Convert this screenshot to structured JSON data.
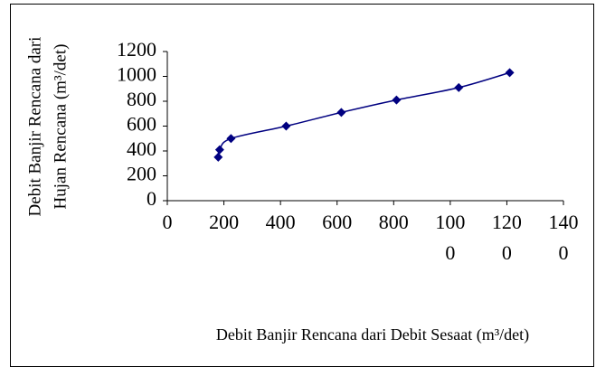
{
  "chart_data": {
    "type": "scatter",
    "x_label": "Debit Banjir Rencana dari Debit Sesaat (m³/det)",
    "y_label": [
      "Debit Banjir Rencana dari",
      "Hujan Rencana (m³/det)"
    ],
    "series": [
      {
        "color": "#000080",
        "x": [
          180,
          185,
          225,
          420,
          615,
          810,
          1030,
          1210
        ],
        "values": [
          350,
          410,
          500,
          600,
          710,
          810,
          910,
          1030
        ]
      }
    ],
    "xlim": [
      0,
      1400
    ],
    "xticks": [
      0,
      200,
      400,
      600,
      800,
      1000,
      1200,
      1400
    ],
    "ylim": [
      0,
      1200
    ],
    "yticks": [
      0,
      200,
      400,
      600,
      800,
      1000,
      1200
    ],
    "smooth_line": true
  }
}
